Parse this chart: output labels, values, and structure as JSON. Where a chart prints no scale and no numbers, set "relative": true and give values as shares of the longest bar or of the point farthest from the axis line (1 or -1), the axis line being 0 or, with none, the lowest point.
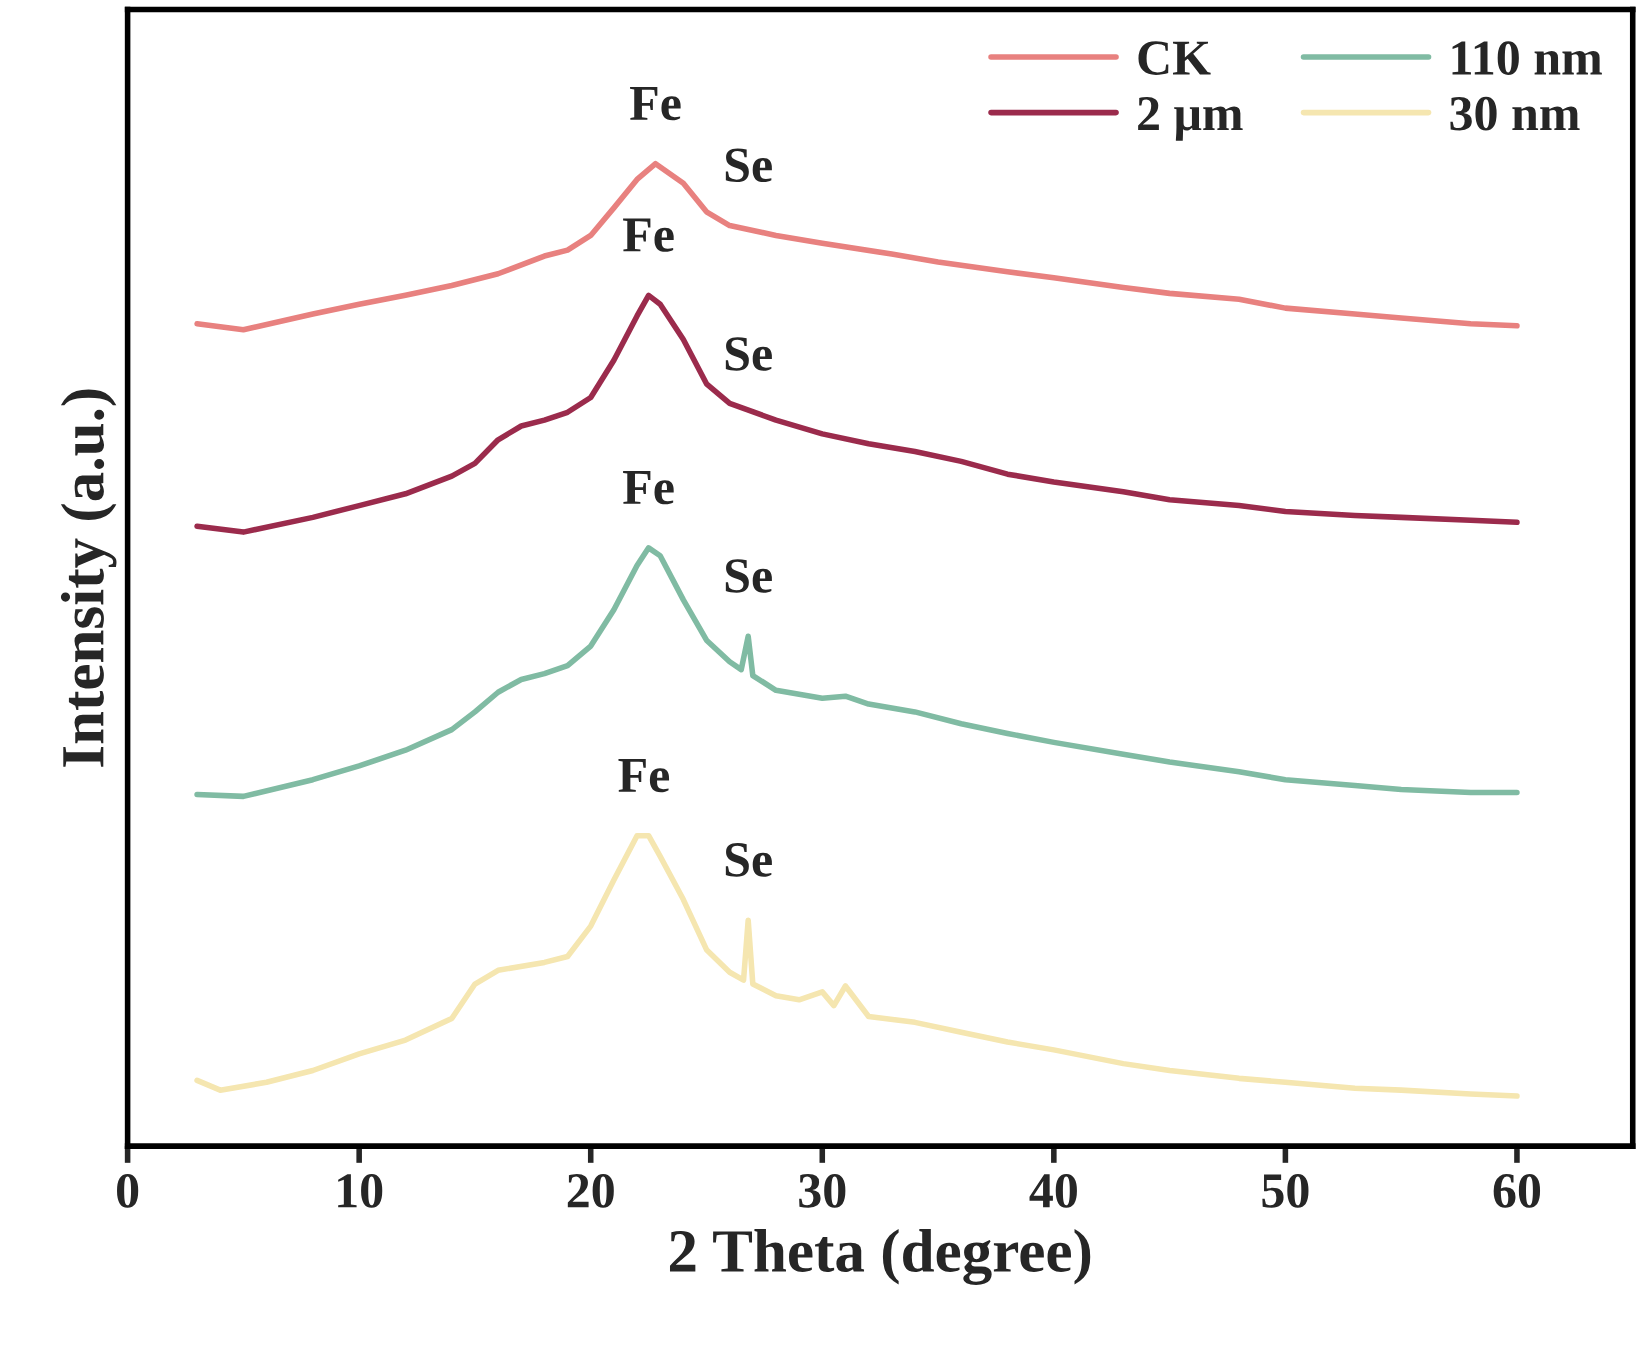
{
  "chart_data": {
    "type": "line",
    "relative": true,
    "xlabel": "2 Theta (degree)",
    "ylabel": "Intensity (a.u.)",
    "xlim": [
      0,
      65
    ],
    "xticks": [
      0,
      10,
      20,
      30,
      40,
      50,
      60
    ],
    "legend": "top right",
    "grid": false,
    "series": [
      {
        "name": "CK",
        "color": "#e8817f",
        "x": [
          3,
          5,
          8,
          10,
          12,
          14,
          16,
          18,
          19,
          20,
          21,
          22,
          22.8,
          24,
          25,
          26,
          28,
          30,
          33,
          35,
          38,
          40,
          43,
          45,
          48,
          50,
          53,
          55,
          58,
          60
        ],
        "values": [
          0.837,
          0.831,
          0.847,
          0.857,
          0.866,
          0.876,
          0.888,
          0.906,
          0.912,
          0.927,
          0.955,
          0.984,
          1.0,
          0.98,
          0.951,
          0.937,
          0.927,
          0.919,
          0.908,
          0.9,
          0.89,
          0.884,
          0.874,
          0.868,
          0.862,
          0.853,
          0.847,
          0.843,
          0.837,
          0.835
        ]
      },
      {
        "name": "2 μm",
        "color": "#9b2b4c",
        "x": [
          3,
          5,
          8,
          10,
          12,
          14,
          15,
          16,
          17,
          18,
          19,
          20,
          21,
          22,
          22.5,
          23,
          24,
          25,
          26,
          28,
          30,
          32,
          34,
          36,
          38,
          40,
          43,
          45,
          48,
          50,
          53,
          55,
          58,
          60
        ],
        "values": [
          0.631,
          0.625,
          0.64,
          0.652,
          0.664,
          0.682,
          0.695,
          0.719,
          0.733,
          0.739,
          0.747,
          0.762,
          0.8,
          0.845,
          0.866,
          0.857,
          0.821,
          0.776,
          0.756,
          0.739,
          0.725,
          0.715,
          0.707,
          0.697,
          0.684,
          0.676,
          0.666,
          0.658,
          0.652,
          0.646,
          0.642,
          0.64,
          0.637,
          0.635
        ]
      },
      {
        "name": "110 nm",
        "color": "#80bba3",
        "x": [
          3,
          5,
          8,
          10,
          12,
          14,
          15,
          16,
          17,
          18,
          19,
          20,
          21,
          22,
          22.5,
          23,
          24,
          25,
          26,
          26.5,
          26.8,
          27,
          28,
          30,
          31,
          32,
          34,
          36,
          38,
          40,
          43,
          45,
          48,
          50,
          53,
          55,
          58,
          60
        ],
        "values": [
          0.358,
          0.356,
          0.373,
          0.387,
          0.403,
          0.424,
          0.442,
          0.462,
          0.475,
          0.481,
          0.489,
          0.509,
          0.546,
          0.591,
          0.609,
          0.601,
          0.556,
          0.515,
          0.493,
          0.485,
          0.519,
          0.479,
          0.464,
          0.456,
          0.458,
          0.45,
          0.442,
          0.43,
          0.42,
          0.411,
          0.399,
          0.391,
          0.381,
          0.373,
          0.367,
          0.363,
          0.36,
          0.36
        ]
      },
      {
        "name": "30 nm",
        "color": "#f5e6b0",
        "x": [
          3,
          4,
          6,
          8,
          10,
          12,
          14,
          15,
          16,
          18,
          19,
          20,
          21,
          22,
          22.5,
          23,
          24,
          25,
          26,
          26.6,
          26.8,
          27,
          28,
          29,
          30,
          30.5,
          31,
          32,
          34,
          36,
          38,
          40,
          43,
          45,
          48,
          50,
          53,
          55,
          58,
          60
        ],
        "values": [
          0.067,
          0.057,
          0.065,
          0.077,
          0.094,
          0.108,
          0.13,
          0.165,
          0.179,
          0.187,
          0.193,
          0.224,
          0.271,
          0.316,
          0.316,
          0.295,
          0.251,
          0.2,
          0.177,
          0.169,
          0.23,
          0.165,
          0.153,
          0.149,
          0.157,
          0.143,
          0.163,
          0.132,
          0.126,
          0.116,
          0.106,
          0.098,
          0.084,
          0.077,
          0.069,
          0.065,
          0.059,
          0.057,
          0.053,
          0.051
        ]
      }
    ],
    "annotations": [
      {
        "text": "Fe",
        "x": 22.8,
        "y": 1.0
      },
      {
        "text": "Se",
        "x": 26.8,
        "y": 0.937
      },
      {
        "text": "Fe",
        "x": 22.5,
        "y": 0.866
      },
      {
        "text": "Se",
        "x": 26.8,
        "y": 0.745
      },
      {
        "text": "Fe",
        "x": 22.5,
        "y": 0.609
      },
      {
        "text": "Se",
        "x": 26.8,
        "y": 0.519
      },
      {
        "text": "Fe",
        "x": 22.3,
        "y": 0.316
      },
      {
        "text": "Se",
        "x": 26.8,
        "y": 0.23
      }
    ]
  }
}
